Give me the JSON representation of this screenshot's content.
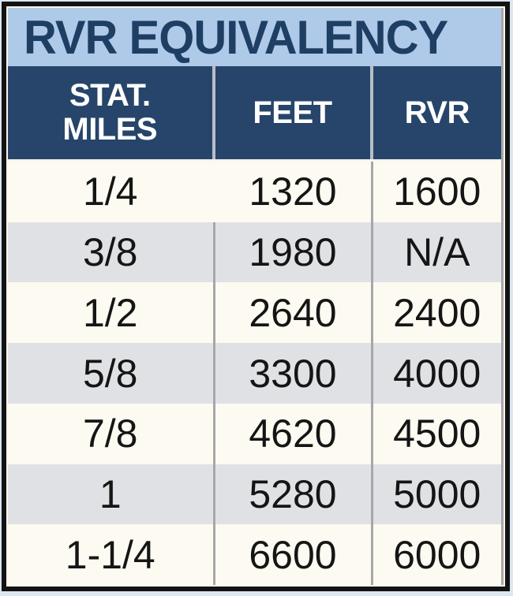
{
  "chart_data": {
    "type": "table",
    "title": "RVR EQUIVALENCY",
    "columns": [
      "STAT. MILES",
      "FEET",
      "RVR"
    ],
    "rows": [
      [
        "1/4",
        "1320",
        "1600"
      ],
      [
        "3/8",
        "1980",
        "N/A"
      ],
      [
        "1/2",
        "2640",
        "2400"
      ],
      [
        "5/8",
        "3300",
        "4000"
      ],
      [
        "7/8",
        "4620",
        "4500"
      ],
      [
        "1",
        "5280",
        "5000"
      ],
      [
        "1-1/4",
        "6600",
        "6000"
      ]
    ]
  },
  "header": {
    "stat_miles_line1": "STAT.",
    "stat_miles_line2": "MILES",
    "feet": "FEET",
    "rvr": "RVR"
  },
  "colors": {
    "page_background": "#dde7f2",
    "outer_border": "#131313",
    "inset_line": "#f7f5ee",
    "title_background": "#aecae8",
    "title_text": "#1e3e63",
    "header_background": "#27456a",
    "header_text": "#ffffff",
    "row_cream": "#fdfaf1",
    "row_gray": "#e0e1e4",
    "separator_gray": "#a7a7aa",
    "cell_text": "#151515"
  }
}
